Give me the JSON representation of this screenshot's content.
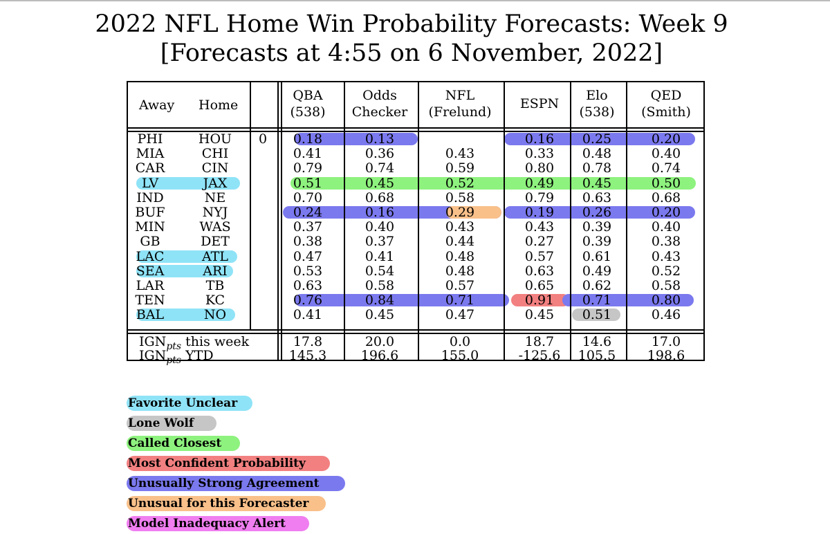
{
  "title_line1": "2022 NFL Home Win Probability Forecasts: Week 9",
  "title_line2": "[Forecasts at 4:55 on 6 November, 2022]",
  "header": {
    "away": "Away",
    "home": "Home",
    "cols": [
      {
        "l1": "QBA",
        "l2": "(538)"
      },
      {
        "l1": "Odds",
        "l2": "Checker"
      },
      {
        "l1": "NFL",
        "l2": "(Frelund)"
      },
      {
        "l1": "ESPN",
        "l2": ""
      },
      {
        "l1": "Elo",
        "l2": "(538)"
      },
      {
        "l1": "QED",
        "l2": "(Smith)"
      }
    ]
  },
  "rows": [
    {
      "away": "PHI",
      "home": "HOU",
      "result": "0",
      "vals": [
        "0.18",
        "0.13",
        "",
        "0.16",
        "0.25",
        "0.20"
      ]
    },
    {
      "away": "MIA",
      "home": "CHI",
      "result": "",
      "vals": [
        "0.41",
        "0.36",
        "0.43",
        "0.33",
        "0.48",
        "0.40"
      ]
    },
    {
      "away": "CAR",
      "home": "CIN",
      "result": "",
      "vals": [
        "0.79",
        "0.74",
        "0.59",
        "0.80",
        "0.78",
        "0.74"
      ]
    },
    {
      "away": "LV",
      "home": "JAX",
      "result": "",
      "vals": [
        "0.51",
        "0.45",
        "0.52",
        "0.49",
        "0.45",
        "0.50"
      ]
    },
    {
      "away": "IND",
      "home": "NE",
      "result": "",
      "vals": [
        "0.70",
        "0.68",
        "0.58",
        "0.79",
        "0.63",
        "0.68"
      ]
    },
    {
      "away": "BUF",
      "home": "NYJ",
      "result": "",
      "vals": [
        "0.24",
        "0.16",
        "0.29",
        "0.19",
        "0.26",
        "0.20"
      ]
    },
    {
      "away": "MIN",
      "home": "WAS",
      "result": "",
      "vals": [
        "0.37",
        "0.40",
        "0.43",
        "0.43",
        "0.39",
        "0.40"
      ]
    },
    {
      "away": "GB",
      "home": "DET",
      "result": "",
      "vals": [
        "0.38",
        "0.37",
        "0.44",
        "0.27",
        "0.39",
        "0.38"
      ]
    },
    {
      "away": "LAC",
      "home": "ATL",
      "result": "",
      "vals": [
        "0.47",
        "0.41",
        "0.48",
        "0.57",
        "0.61",
        "0.43"
      ]
    },
    {
      "away": "SEA",
      "home": "ARI",
      "result": "",
      "vals": [
        "0.53",
        "0.54",
        "0.48",
        "0.63",
        "0.49",
        "0.52"
      ]
    },
    {
      "away": "LAR",
      "home": "TB",
      "result": "",
      "vals": [
        "0.63",
        "0.58",
        "0.57",
        "0.65",
        "0.62",
        "0.58"
      ]
    },
    {
      "away": "TEN",
      "home": "KC",
      "result": "",
      "vals": [
        "0.76",
        "0.84",
        "0.71",
        "0.91",
        "0.71",
        "0.80"
      ]
    },
    {
      "away": "BAL",
      "home": "NO",
      "result": "",
      "vals": [
        "0.41",
        "0.45",
        "0.47",
        "0.45",
        "0.51",
        "0.46"
      ]
    }
  ],
  "ign": [
    {
      "label_pre": "IGN",
      "label_sub": "pts",
      "label_post": " this week",
      "vals": [
        "17.8",
        "20.0",
        "0.0",
        "18.7",
        "14.6",
        "17.0"
      ]
    },
    {
      "label_pre": "IGN",
      "label_sub": "pts",
      "label_post": " YTD",
      "vals": [
        "145.3",
        "196.6",
        "155.0",
        "-125.6",
        "105.5",
        "198.6"
      ]
    }
  ],
  "legend": [
    {
      "label": "Favorite Unclear",
      "color": "#8fe3f7"
    },
    {
      "label": "Lone Wolf",
      "color": "#c6c6c6"
    },
    {
      "label": "Called Closest",
      "color": "#8ef27e"
    },
    {
      "label": "Most Confident Probability",
      "color": "#f28080"
    },
    {
      "label": "Unusually Strong Agreement",
      "color": "#7b79ee"
    },
    {
      "label": "Unusual for this Forecaster",
      "color": "#f9c08a"
    },
    {
      "label": "Model Inadequacy Alert",
      "color": "#f07ef0"
    }
  ]
}
